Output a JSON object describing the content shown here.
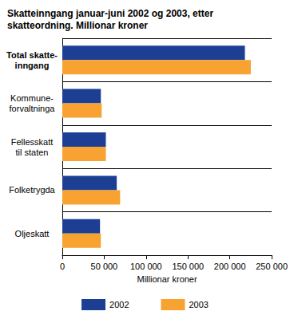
{
  "chart_data": {
    "type": "bar",
    "orientation": "horizontal",
    "title": "Skatteinngang januar-juni 2002 og 2003, etter skatteordning. Millionar kroner",
    "xlabel": "Millionar kroner",
    "categories": [
      "Total skatte-\ninngang",
      "Kommune-\nforvaltninga",
      "Fellesskatt\ntil staten",
      "Folketrygda",
      "Oljeskatt"
    ],
    "series": [
      {
        "name": "2002",
        "color": "#1c3f94",
        "values": [
          218000,
          46000,
          52000,
          65000,
          45000
        ]
      },
      {
        "name": "2003",
        "color": "#f7a231",
        "values": [
          225000,
          47000,
          52000,
          69000,
          46000
        ]
      }
    ],
    "xlim": [
      0,
      250000
    ],
    "xticks": [
      0,
      {
        "value": 50000,
        "label": "50 000"
      },
      {
        "value": 100000,
        "label": "100 000"
      },
      {
        "value": 150000,
        "label": "150 000"
      },
      {
        "value": 200000,
        "label": "200 000"
      },
      {
        "value": 250000,
        "label": "250 000"
      }
    ],
    "grid": false,
    "legend": "bottom"
  }
}
